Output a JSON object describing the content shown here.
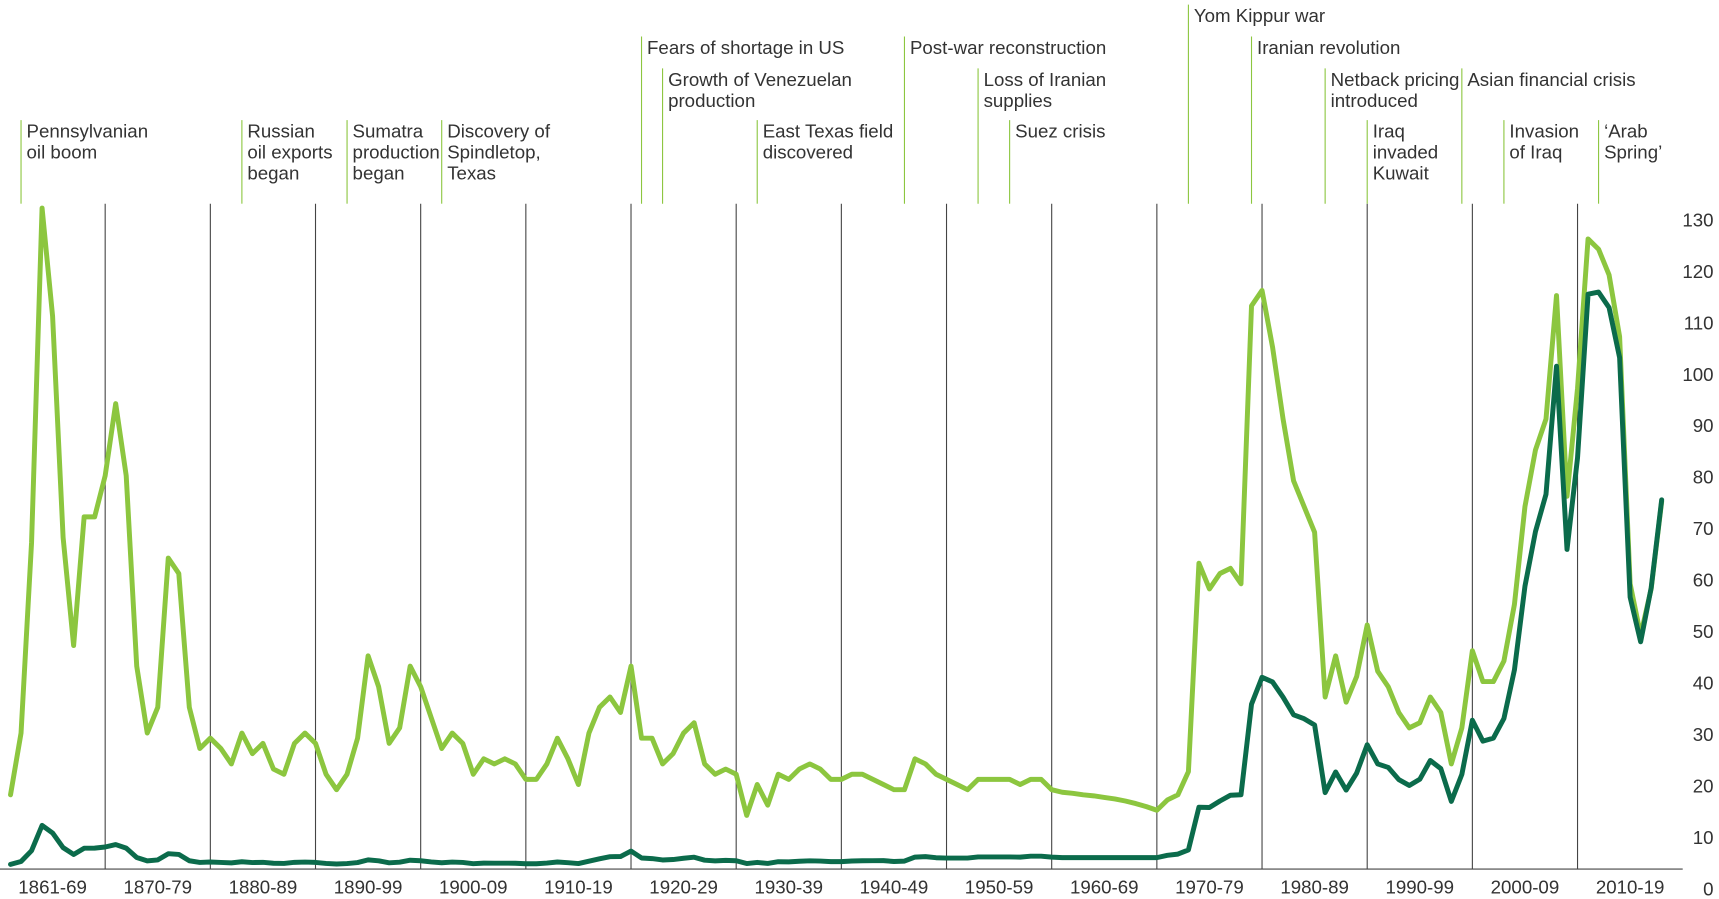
{
  "chart_data": {
    "type": "line",
    "x": [
      1861,
      1862,
      1863,
      1864,
      1865,
      1866,
      1867,
      1868,
      1869,
      1870,
      1871,
      1872,
      1873,
      1874,
      1875,
      1876,
      1877,
      1878,
      1879,
      1880,
      1881,
      1882,
      1883,
      1884,
      1885,
      1886,
      1887,
      1888,
      1889,
      1890,
      1891,
      1892,
      1893,
      1894,
      1895,
      1896,
      1897,
      1898,
      1899,
      1900,
      1901,
      1902,
      1903,
      1904,
      1905,
      1906,
      1907,
      1908,
      1909,
      1910,
      1911,
      1912,
      1913,
      1914,
      1915,
      1916,
      1917,
      1918,
      1919,
      1920,
      1921,
      1922,
      1923,
      1924,
      1925,
      1926,
      1927,
      1928,
      1929,
      1930,
      1931,
      1932,
      1933,
      1934,
      1935,
      1936,
      1937,
      1938,
      1939,
      1940,
      1941,
      1942,
      1943,
      1944,
      1945,
      1946,
      1947,
      1948,
      1949,
      1950,
      1951,
      1952,
      1953,
      1954,
      1955,
      1956,
      1957,
      1958,
      1959,
      1960,
      1961,
      1962,
      1963,
      1964,
      1965,
      1966,
      1967,
      1968,
      1969,
      1970,
      1971,
      1972,
      1973,
      1974,
      1975,
      1976,
      1977,
      1978,
      1979,
      1980,
      1981,
      1982,
      1983,
      1984,
      1985,
      1986,
      1987,
      1988,
      1989,
      1990,
      1991,
      1992,
      1993,
      1994,
      1995,
      1996,
      1997,
      1998,
      1999,
      2000,
      2001,
      2002,
      2003,
      2004,
      2005,
      2006,
      2007,
      2008,
      2009,
      2010,
      2011,
      2012,
      2013,
      2014,
      2015,
      2016,
      2017,
      2018
    ],
    "series": [
      {
        "color": "#8cc63f",
        "values": [
          14,
          26,
          63,
          128,
          107,
          64,
          43,
          68,
          68,
          76,
          90,
          76,
          39,
          26,
          31,
          60,
          57,
          31,
          23,
          25,
          23,
          20,
          26,
          22,
          24,
          19,
          18,
          24,
          26,
          24,
          18,
          15,
          18,
          25,
          41,
          35,
          24,
          27,
          39,
          35,
          29,
          23,
          26,
          24,
          18,
          21,
          20,
          21,
          20,
          17,
          17,
          20,
          25,
          21,
          16,
          26,
          31,
          33,
          30,
          39,
          25,
          25,
          20,
          22,
          26,
          28,
          20,
          18,
          19,
          18,
          10,
          16,
          12,
          18,
          17,
          19,
          20,
          19,
          17,
          17,
          18,
          18,
          17,
          16,
          15,
          15,
          21,
          20,
          18,
          17,
          16,
          15,
          17,
          17,
          17,
          17,
          16,
          17,
          17,
          15,
          14.5,
          14.3,
          14,
          13.8,
          13.5,
          13.2,
          12.8,
          12.3,
          11.7,
          11,
          13,
          14,
          18.5,
          59,
          54,
          57,
          58,
          55,
          109,
          112,
          101,
          87,
          75,
          70,
          65,
          33,
          41,
          32,
          37,
          47,
          38,
          35,
          30,
          27,
          28,
          33,
          30,
          20,
          27,
          42,
          36,
          36,
          40,
          51,
          70,
          81,
          87,
          111,
          72,
          93,
          122,
          120,
          115,
          103,
          55,
          45,
          54,
          71
        ]
      },
      {
        "color": "#0b6b4b",
        "values": [
          0.49,
          1.05,
          3.15,
          8.06,
          6.59,
          3.74,
          2.41,
          3.63,
          3.64,
          3.86,
          4.34,
          3.64,
          1.83,
          1.17,
          1.35,
          2.56,
          2.42,
          1.19,
          0.86,
          0.95,
          0.86,
          0.78,
          1.0,
          0.84,
          0.88,
          0.71,
          0.67,
          0.88,
          0.94,
          0.87,
          0.67,
          0.56,
          0.64,
          0.84,
          1.36,
          1.18,
          0.79,
          0.91,
          1.29,
          1.19,
          0.96,
          0.8,
          0.94,
          0.86,
          0.62,
          0.73,
          0.72,
          0.72,
          0.7,
          0.61,
          0.61,
          0.74,
          0.95,
          0.81,
          0.64,
          1.1,
          1.56,
          1.98,
          2.01,
          3.07,
          1.73,
          1.61,
          1.34,
          1.43,
          1.68,
          1.88,
          1.3,
          1.17,
          1.27,
          1.19,
          0.65,
          0.87,
          0.67,
          1.0,
          0.97,
          1.09,
          1.18,
          1.13,
          1.02,
          1.02,
          1.14,
          1.19,
          1.2,
          1.21,
          1.05,
          1.12,
          1.9,
          1.99,
          1.78,
          1.71,
          1.71,
          1.71,
          1.93,
          1.93,
          1.93,
          1.93,
          1.9,
          2.08,
          2.08,
          1.9,
          1.8,
          1.8,
          1.8,
          1.8,
          1.8,
          1.8,
          1.8,
          1.8,
          1.8,
          1.8,
          2.24,
          2.48,
          3.29,
          11.58,
          11.53,
          12.8,
          13.92,
          14.02,
          31.61,
          36.83,
          35.93,
          32.97,
          29.55,
          28.78,
          27.56,
          14.43,
          18.44,
          14.92,
          18.23,
          23.73,
          20.0,
          19.32,
          16.97,
          15.82,
          17.02,
          20.67,
          19.09,
          12.72,
          17.97,
          28.5,
          24.44,
          25.02,
          28.83,
          38.27,
          54.52,
          65.14,
          72.39,
          97.26,
          61.67,
          79.5,
          111.26,
          111.67,
          108.66,
          98.95,
          52.39,
          43.73,
          54.19,
          71.31
        ]
      }
    ],
    "xlim": [
      1860,
      2020
    ],
    "xticks": [
      1870,
      1880,
      1890,
      1900,
      1910,
      1920,
      1930,
      1940,
      1950,
      1960,
      1970,
      1980,
      1990,
      2000,
      2010
    ],
    "decade_labels": [
      "1861-69",
      "1870-79",
      "1880-89",
      "1890-99",
      "1900-09",
      "1910-19",
      "1920-29",
      "1930-39",
      "1940-49",
      "1950-59",
      "1960-69",
      "1970-79",
      "1980-89",
      "1990-99",
      "2000-09",
      "2010-19"
    ],
    "ylim": [
      0,
      130
    ],
    "yticks": [
      0,
      10,
      20,
      30,
      40,
      50,
      60,
      70,
      80,
      90,
      100,
      110,
      120,
      130
    ],
    "grid": true,
    "annotations": [
      {
        "x": 1862,
        "text": [
          "Pennsylvanian",
          "oil boom"
        ]
      },
      {
        "x": 1883,
        "text": [
          "Russian",
          "oil exports",
          "began"
        ]
      },
      {
        "x": 1893,
        "text": [
          "Sumatra",
          "production",
          "began"
        ]
      },
      {
        "x": 1902,
        "text": [
          "Discovery of",
          "Spindletop,",
          "Texas"
        ]
      },
      {
        "x": 1921,
        "text": [
          "Fears of shortage in US"
        ]
      },
      {
        "x": 1923,
        "text": [
          "Growth of Venezuelan",
          "production"
        ]
      },
      {
        "x": 1932,
        "text": [
          "East Texas field",
          "discovered"
        ]
      },
      {
        "x": 1946,
        "text": [
          "Post-war reconstruction"
        ]
      },
      {
        "x": 1953,
        "text": [
          "Loss of Iranian",
          "supplies"
        ]
      },
      {
        "x": 1956,
        "text": [
          "Suez crisis"
        ]
      },
      {
        "x": 1973,
        "text": [
          "Yom Kippur war"
        ]
      },
      {
        "x": 1979,
        "text": [
          "Iranian revolution"
        ]
      },
      {
        "x": 1986,
        "text": [
          "Netback pricing",
          "introduced"
        ]
      },
      {
        "x": 1990,
        "text": [
          "Iraq",
          "invaded",
          "Kuwait"
        ]
      },
      {
        "x": 1999,
        "text": [
          "Asian financial crisis"
        ]
      },
      {
        "x": 2003,
        "text": [
          "Invasion",
          "of Iraq"
        ]
      },
      {
        "x": 2012,
        "text": [
          "‘Arab",
          "Spring’"
        ]
      }
    ]
  }
}
